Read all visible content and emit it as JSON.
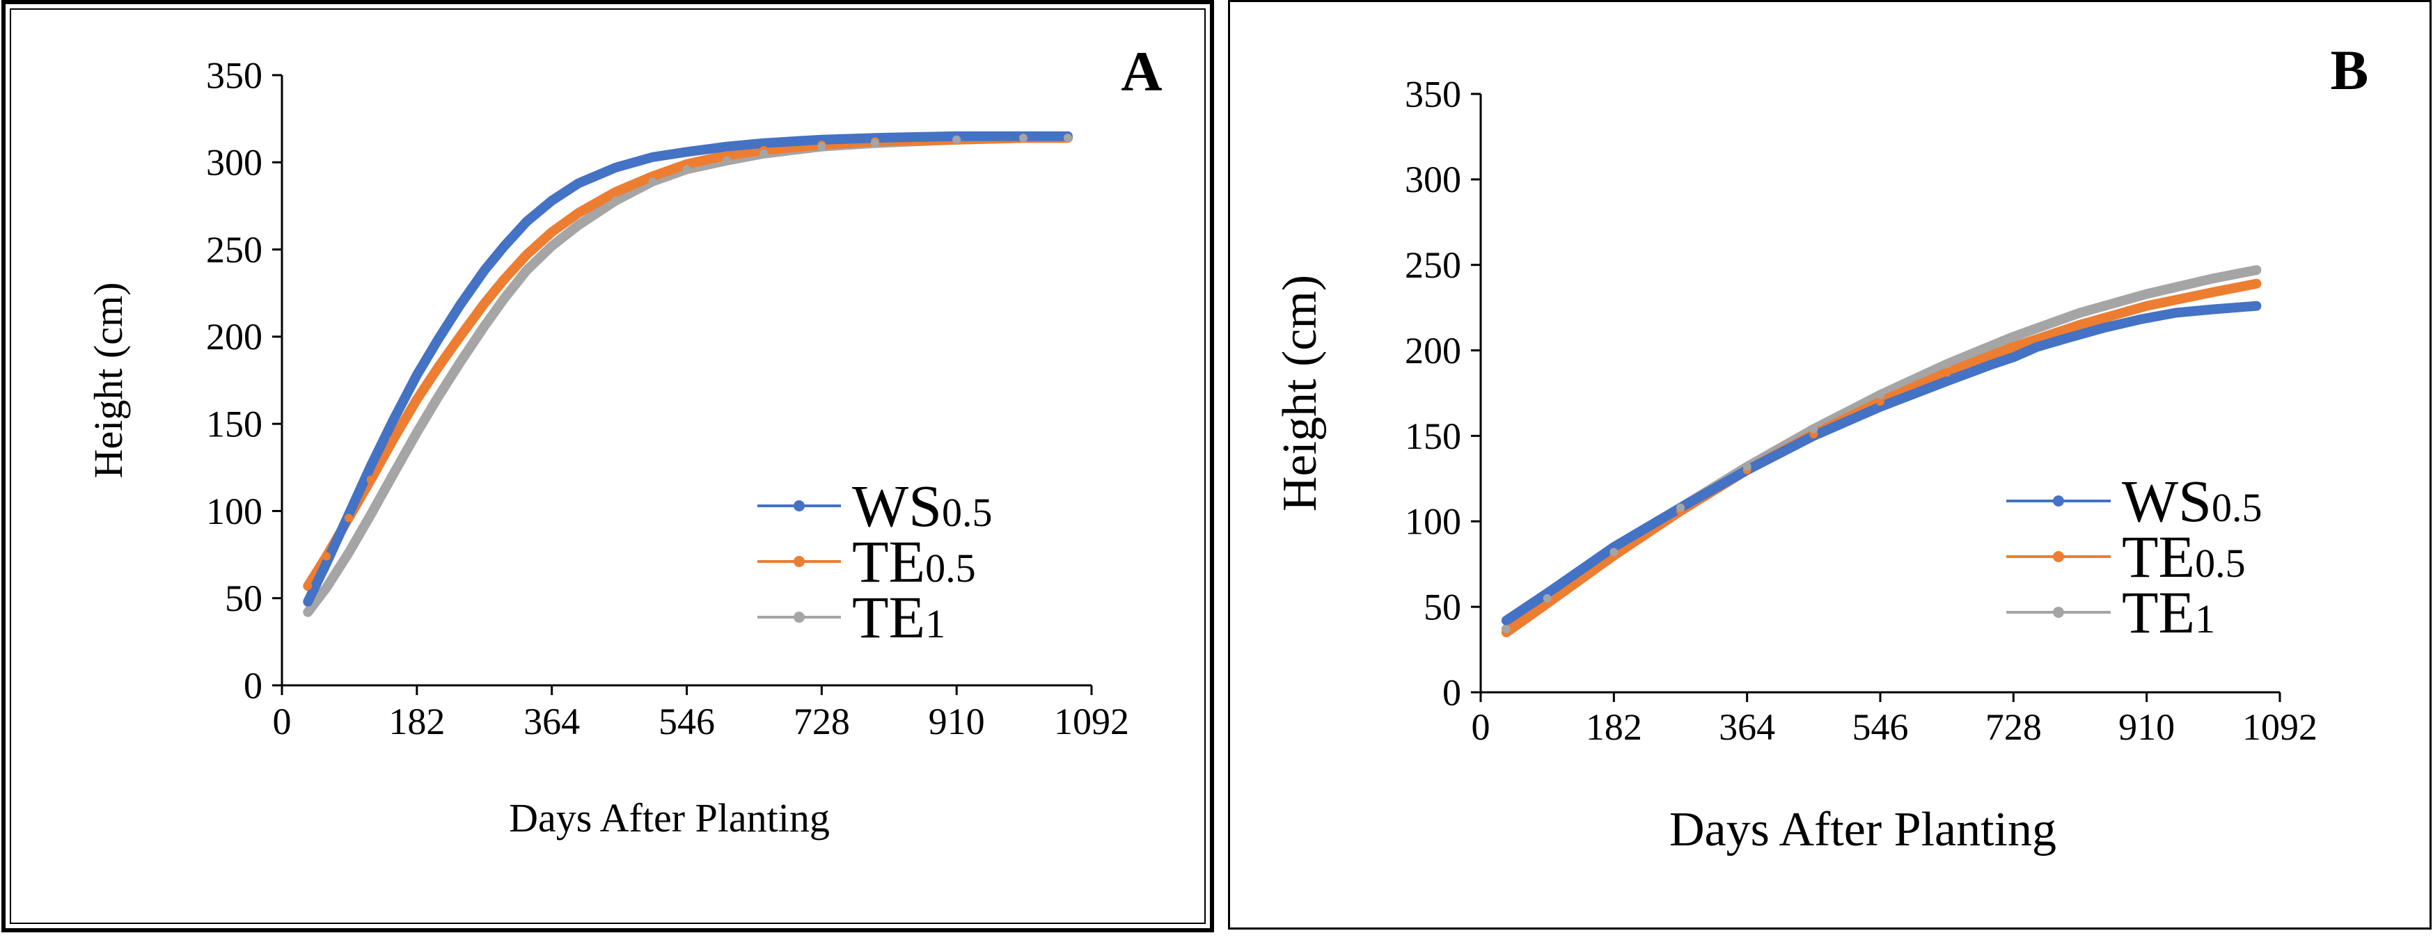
{
  "chart_data": [
    {
      "type": "line",
      "panel_label": "A",
      "xlabel": "Days After Planting",
      "ylabel": "Height (cm)",
      "xlim": [
        0,
        1092
      ],
      "ylim": [
        0,
        350
      ],
      "xticks": [
        0,
        182,
        364,
        546,
        728,
        910,
        1092
      ],
      "yticks": [
        0,
        50,
        100,
        150,
        200,
        250,
        300,
        350
      ],
      "legend_position": "lower-right",
      "series": [
        {
          "name": "WS0.5",
          "legend_main": "WS",
          "legend_sub": "0.5",
          "color": "#4472c4",
          "x": [
            35,
            60,
            90,
            120,
            150,
            182,
            210,
            240,
            273,
            300,
            330,
            364,
            400,
            450,
            500,
            546,
            600,
            650,
            728,
            800,
            910,
            1000,
            1060
          ],
          "y": [
            48,
            70,
            98,
            126,
            152,
            178,
            198,
            218,
            238,
            252,
            266,
            278,
            288,
            297,
            303,
            306,
            309,
            311,
            313,
            314,
            315,
            315,
            315
          ]
        },
        {
          "name": "TE0.5",
          "legend_main": "TE",
          "legend_sub": "0.5",
          "color": "#ed7d31",
          "x": [
            35,
            60,
            90,
            120,
            150,
            182,
            210,
            240,
            273,
            300,
            330,
            364,
            400,
            450,
            500,
            546,
            600,
            650,
            728,
            800,
            910,
            1000,
            1060
          ],
          "y": [
            57,
            74,
            96,
            118,
            141,
            164,
            182,
            200,
            219,
            233,
            247,
            260,
            271,
            283,
            292,
            299,
            304,
            307,
            310,
            312,
            313,
            314,
            314
          ]
        },
        {
          "name": "TE1",
          "legend_main": "TE",
          "legend_sub": "1",
          "color": "#a5a5a5",
          "x": [
            35,
            60,
            90,
            120,
            150,
            182,
            210,
            240,
            273,
            300,
            330,
            364,
            400,
            450,
            500,
            546,
            600,
            650,
            728,
            800,
            910,
            1000,
            1060
          ],
          "y": [
            42,
            56,
            76,
            98,
            121,
            145,
            165,
            185,
            206,
            222,
            238,
            252,
            264,
            278,
            289,
            296,
            301,
            305,
            309,
            311,
            313,
            314,
            314
          ]
        }
      ]
    },
    {
      "type": "line",
      "panel_label": "B",
      "xlabel": "Days After Planting",
      "ylabel": "Height (cm)",
      "xlim": [
        0,
        1092
      ],
      "ylim": [
        0,
        350
      ],
      "xticks": [
        0,
        182,
        364,
        546,
        728,
        910,
        1092
      ],
      "yticks": [
        0,
        50,
        100,
        150,
        200,
        250,
        300,
        350
      ],
      "legend_position": "lower-right",
      "series": [
        {
          "name": "WS0.5",
          "legend_main": "WS",
          "legend_sub": "0.5",
          "color": "#4472c4",
          "x": [
            35,
            91,
            182,
            273,
            364,
            455,
            546,
            637,
            700,
            728,
            760,
            800,
            850,
            900,
            950,
            1000,
            1060
          ],
          "y": [
            42,
            58,
            85,
            108,
            130,
            150,
            167,
            182,
            192,
            196,
            202,
            207,
            213,
            218,
            222,
            224,
            226
          ]
        },
        {
          "name": "TE0.5",
          "legend_main": "TE",
          "legend_sub": "0.5",
          "color": "#ed7d31",
          "x": [
            35,
            91,
            182,
            273,
            364,
            455,
            546,
            637,
            728,
            819,
            910,
            1000,
            1060
          ],
          "y": [
            35,
            52,
            80,
            106,
            130,
            151,
            170,
            187,
            202,
            215,
            226,
            234,
            239
          ]
        },
        {
          "name": "TE1",
          "legend_main": "TE",
          "legend_sub": "1",
          "color": "#a5a5a5",
          "x": [
            35,
            91,
            182,
            273,
            364,
            455,
            546,
            637,
            728,
            819,
            910,
            1000,
            1060
          ],
          "y": [
            37,
            55,
            82,
            108,
            132,
            154,
            174,
            192,
            208,
            222,
            233,
            242,
            247
          ]
        }
      ]
    }
  ]
}
